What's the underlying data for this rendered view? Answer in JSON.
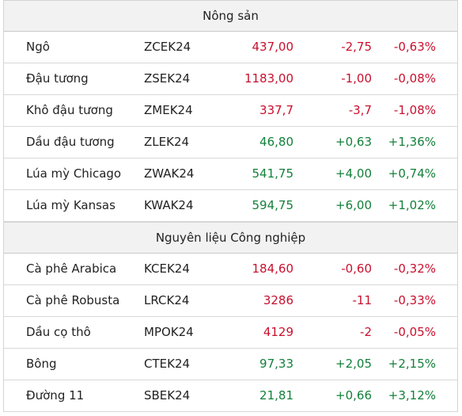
{
  "sections": [
    {
      "title": "Nông sản",
      "rows": [
        {
          "name": "Ngô",
          "code": "ZCEK24",
          "price": "437,00",
          "change": "-2,75",
          "pct": "-0,63%",
          "dir": "down"
        },
        {
          "name": "Đậu tương",
          "code": "ZSEK24",
          "price": "1183,00",
          "change": "-1,00",
          "pct": "-0,08%",
          "dir": "down"
        },
        {
          "name": "Khô đậu tương",
          "code": "ZMEK24",
          "price": "337,7",
          "change": "-3,7",
          "pct": "-1,08%",
          "dir": "down"
        },
        {
          "name": "Dầu đậu tương",
          "code": "ZLEK24",
          "price": "46,80",
          "change": "+0,63",
          "pct": "+1,36%",
          "dir": "up"
        },
        {
          "name": "Lúa mỳ Chicago",
          "code": "ZWAK24",
          "price": "541,75",
          "change": "+4,00",
          "pct": "+0,74%",
          "dir": "up"
        },
        {
          "name": "Lúa mỳ Kansas",
          "code": "KWAK24",
          "price": "594,75",
          "change": "+6,00",
          "pct": "+1,02%",
          "dir": "up"
        }
      ]
    },
    {
      "title": "Nguyên liệu Công nghiệp",
      "rows": [
        {
          "name": "Cà phê Arabica",
          "code": "KCEK24",
          "price": "184,60",
          "change": "-0,60",
          "pct": "-0,32%",
          "dir": "down"
        },
        {
          "name": "Cà phê Robusta",
          "code": "LRCK24",
          "price": "3286",
          "change": "-11",
          "pct": "-0,33%",
          "dir": "down"
        },
        {
          "name": "Dầu cọ thô",
          "code": "MPOK24",
          "price": "4129",
          "change": "-2",
          "pct": "-0,05%",
          "dir": "down"
        },
        {
          "name": "Bông",
          "code": "CTEK24",
          "price": "97,33",
          "change": "+2,05",
          "pct": "+2,15%",
          "dir": "up"
        },
        {
          "name": "Đường 11",
          "code": "SBEK24",
          "price": "21,81",
          "change": "+0,66",
          "pct": "+3,12%",
          "dir": "up"
        }
      ]
    }
  ],
  "colors": {
    "down": "#c8102e",
    "up": "#13803a",
    "header_bg": "#f2f2f2",
    "text": "#222222"
  }
}
